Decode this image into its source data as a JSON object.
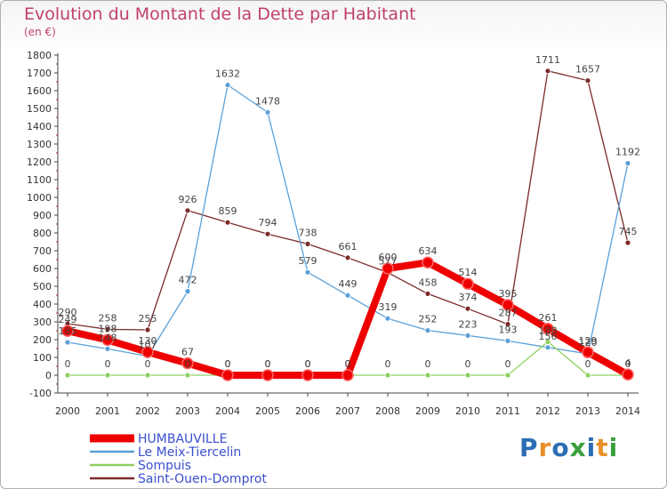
{
  "header": {
    "title": "Evolution du Montant de la Dette par Habitant",
    "unit": "(en €)"
  },
  "logo": {
    "text": "Proxiti",
    "colors": [
      "#2a6db5",
      "#e8902a",
      "#2a6db5",
      "#3aa03a",
      "#2a6db5",
      "#e8902a",
      "#3aa03a"
    ]
  },
  "chart_data": {
    "type": "line",
    "title": "Evolution du Montant de la Dette par Habitant",
    "ylabel": "(en €)",
    "xlabel": "",
    "x": [
      "2000",
      "2001",
      "2002",
      "2003",
      "2004",
      "2005",
      "2006",
      "2007",
      "2008",
      "2009",
      "2010",
      "2011",
      "2012",
      "2013",
      "2014"
    ],
    "ylim": [
      -100,
      1800
    ],
    "yticks": [
      -100,
      0,
      100,
      200,
      300,
      400,
      500,
      600,
      700,
      800,
      900,
      1000,
      1100,
      1200,
      1300,
      1400,
      1500,
      1600,
      1700,
      1800
    ],
    "grid": false,
    "legend": "bottom-left",
    "series": [
      {
        "name": "HUMBAUVILLE",
        "color": "#ee0000",
        "values": [
          249,
          198,
          130,
          67,
          0,
          0,
          0,
          0,
          600,
          634,
          514,
          395,
          261,
          129,
          4
        ]
      },
      {
        "name": "Le Meix-Tiercelin",
        "color": "#5aa0d8",
        "values": [
          185,
          148,
          107,
          472,
          1632,
          1478,
          579,
          449,
          319,
          252,
          223,
          193,
          156,
          120,
          1192
        ]
      },
      {
        "name": "Sompuis",
        "color": "#8fd060",
        "values": [
          0,
          0,
          0,
          0,
          0,
          0,
          0,
          0,
          0,
          0,
          0,
          0,
          188,
          0,
          0
        ]
      },
      {
        "name": "Saint-Ouen-Domprot",
        "color": "#7a2a2a",
        "values": [
          290,
          258,
          255,
          926,
          859,
          794,
          738,
          661,
          577,
          458,
          374,
          287,
          1711,
          1657,
          745
        ]
      }
    ]
  }
}
